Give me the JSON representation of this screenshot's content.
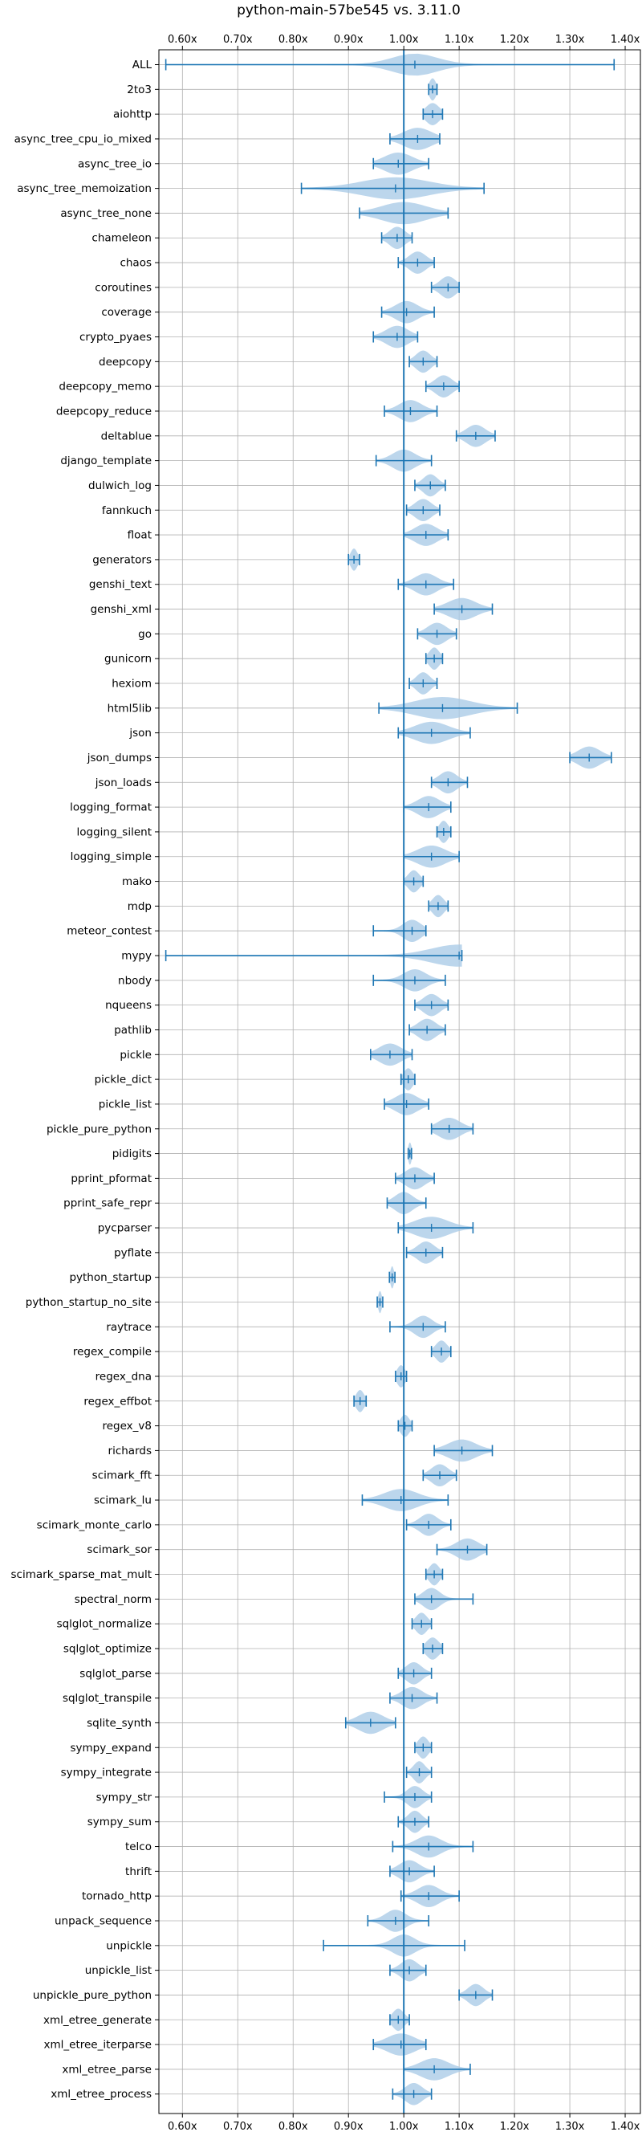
{
  "chart_data": {
    "type": "violin",
    "title": "python-main-57be545 vs. 3.11.0",
    "xlabel": "",
    "ylabel": "",
    "xlim": [
      0.5575,
      1.4275
    ],
    "xticks": [
      0.6,
      0.7,
      0.8,
      0.9,
      1.0,
      1.1,
      1.2,
      1.3,
      1.4
    ],
    "xtick_labels": [
      "0.60x",
      "0.70x",
      "0.80x",
      "0.90x",
      "1.00x",
      "1.10x",
      "1.20x",
      "1.30x",
      "1.40x"
    ],
    "tick_axes": [
      "top",
      "bottom"
    ],
    "reference_line": 1.0,
    "grid": true,
    "colors": {
      "violin": "#a6c8e6",
      "line": "#1f77b4",
      "grid": "#b0b0b0"
    },
    "benchmarks": [
      {
        "name": "ALL",
        "min": 0.57,
        "max": 1.38,
        "median": 1.02,
        "spread": 0.04
      },
      {
        "name": "2to3",
        "min": 1.045,
        "max": 1.06,
        "median": 1.052,
        "spread": 0.006
      },
      {
        "name": "aiohttp",
        "min": 1.035,
        "max": 1.07,
        "median": 1.052,
        "spread": 0.012
      },
      {
        "name": "async_tree_cpu_io_mixed",
        "min": 0.975,
        "max": 1.065,
        "median": 1.025,
        "spread": 0.025
      },
      {
        "name": "async_tree_io",
        "min": 0.945,
        "max": 1.045,
        "median": 0.99,
        "spread": 0.025
      },
      {
        "name": "async_tree_memoization",
        "min": 0.815,
        "max": 1.145,
        "median": 0.985,
        "spread": 0.06
      },
      {
        "name": "async_tree_none",
        "min": 0.92,
        "max": 1.08,
        "median": 1.0,
        "spread": 0.04
      },
      {
        "name": "chameleon",
        "min": 0.96,
        "max": 1.015,
        "median": 0.988,
        "spread": 0.014
      },
      {
        "name": "chaos",
        "min": 0.99,
        "max": 1.055,
        "median": 1.025,
        "spread": 0.015
      },
      {
        "name": "coroutines",
        "min": 1.05,
        "max": 1.1,
        "median": 1.08,
        "spread": 0.014
      },
      {
        "name": "coverage",
        "min": 0.96,
        "max": 1.055,
        "median": 1.005,
        "spread": 0.02
      },
      {
        "name": "crypto_pyaes",
        "min": 0.945,
        "max": 1.025,
        "median": 0.988,
        "spread": 0.02
      },
      {
        "name": "deepcopy",
        "min": 1.01,
        "max": 1.06,
        "median": 1.035,
        "spread": 0.013
      },
      {
        "name": "deepcopy_memo",
        "min": 1.04,
        "max": 1.1,
        "median": 1.072,
        "spread": 0.015
      },
      {
        "name": "deepcopy_reduce",
        "min": 0.965,
        "max": 1.06,
        "median": 1.012,
        "spread": 0.02
      },
      {
        "name": "deltablue",
        "min": 1.095,
        "max": 1.165,
        "median": 1.13,
        "spread": 0.017
      },
      {
        "name": "django_template",
        "min": 0.95,
        "max": 1.05,
        "median": 1.0,
        "spread": 0.02
      },
      {
        "name": "dulwich_log",
        "min": 1.02,
        "max": 1.075,
        "median": 1.048,
        "spread": 0.013
      },
      {
        "name": "fannkuch",
        "min": 1.005,
        "max": 1.065,
        "median": 1.035,
        "spread": 0.015
      },
      {
        "name": "float",
        "min": 1.0,
        "max": 1.08,
        "median": 1.04,
        "spread": 0.02
      },
      {
        "name": "generators",
        "min": 0.9,
        "max": 0.92,
        "median": 0.91,
        "spread": 0.006
      },
      {
        "name": "genshi_text",
        "min": 0.99,
        "max": 1.09,
        "median": 1.04,
        "spread": 0.02
      },
      {
        "name": "genshi_xml",
        "min": 1.055,
        "max": 1.16,
        "median": 1.105,
        "spread": 0.025
      },
      {
        "name": "go",
        "min": 1.025,
        "max": 1.095,
        "median": 1.06,
        "spread": 0.017
      },
      {
        "name": "gunicorn",
        "min": 1.04,
        "max": 1.07,
        "median": 1.055,
        "spread": 0.009
      },
      {
        "name": "hexiom",
        "min": 1.01,
        "max": 1.06,
        "median": 1.035,
        "spread": 0.012
      },
      {
        "name": "html5lib",
        "min": 0.955,
        "max": 1.205,
        "median": 1.07,
        "spread": 0.05
      },
      {
        "name": "json",
        "min": 0.99,
        "max": 1.12,
        "median": 1.05,
        "spread": 0.03
      },
      {
        "name": "json_dumps",
        "min": 1.3,
        "max": 1.375,
        "median": 1.335,
        "spread": 0.02
      },
      {
        "name": "json_loads",
        "min": 1.05,
        "max": 1.115,
        "median": 1.08,
        "spread": 0.016
      },
      {
        "name": "logging_format",
        "min": 1.0,
        "max": 1.085,
        "median": 1.045,
        "spread": 0.02
      },
      {
        "name": "logging_silent",
        "min": 1.06,
        "max": 1.085,
        "median": 1.072,
        "spread": 0.008
      },
      {
        "name": "logging_simple",
        "min": 1.0,
        "max": 1.1,
        "median": 1.05,
        "spread": 0.025
      },
      {
        "name": "mako",
        "min": 1.0,
        "max": 1.035,
        "median": 1.018,
        "spread": 0.01
      },
      {
        "name": "mdp",
        "min": 1.045,
        "max": 1.08,
        "median": 1.062,
        "spread": 0.01
      },
      {
        "name": "meteor_contest",
        "min": 0.945,
        "max": 1.04,
        "median": 1.015,
        "spread": 0.016
      },
      {
        "name": "mypy",
        "min": 0.57,
        "max": 1.105,
        "median": 1.1,
        "spread": 0.05
      },
      {
        "name": "nbody",
        "min": 0.945,
        "max": 1.075,
        "median": 1.02,
        "spread": 0.02
      },
      {
        "name": "nqueens",
        "min": 1.02,
        "max": 1.08,
        "median": 1.05,
        "spread": 0.015
      },
      {
        "name": "pathlib",
        "min": 1.01,
        "max": 1.075,
        "median": 1.042,
        "spread": 0.016
      },
      {
        "name": "pickle",
        "min": 0.94,
        "max": 1.015,
        "median": 0.975,
        "spread": 0.02
      },
      {
        "name": "pickle_dict",
        "min": 0.995,
        "max": 1.02,
        "median": 1.008,
        "spread": 0.008
      },
      {
        "name": "pickle_list",
        "min": 0.965,
        "max": 1.045,
        "median": 1.005,
        "spread": 0.02
      },
      {
        "name": "pickle_pure_python",
        "min": 1.05,
        "max": 1.125,
        "median": 1.082,
        "spread": 0.02
      },
      {
        "name": "pidigits",
        "min": 1.008,
        "max": 1.014,
        "median": 1.011,
        "spread": 0.003
      },
      {
        "name": "pprint_pformat",
        "min": 0.985,
        "max": 1.055,
        "median": 1.02,
        "spread": 0.017
      },
      {
        "name": "pprint_safe_repr",
        "min": 0.97,
        "max": 1.04,
        "median": 1.0,
        "spread": 0.016
      },
      {
        "name": "pycparser",
        "min": 0.99,
        "max": 1.125,
        "median": 1.05,
        "spread": 0.03
      },
      {
        "name": "pyflate",
        "min": 1.005,
        "max": 1.07,
        "median": 1.04,
        "spread": 0.015
      },
      {
        "name": "python_startup",
        "min": 0.974,
        "max": 0.984,
        "median": 0.979,
        "spread": 0.003
      },
      {
        "name": "python_startup_no_site",
        "min": 0.952,
        "max": 0.962,
        "median": 0.957,
        "spread": 0.003
      },
      {
        "name": "raytrace",
        "min": 0.975,
        "max": 1.075,
        "median": 1.035,
        "spread": 0.016
      },
      {
        "name": "regex_compile",
        "min": 1.05,
        "max": 1.085,
        "median": 1.068,
        "spread": 0.01
      },
      {
        "name": "regex_dna",
        "min": 0.985,
        "max": 1.005,
        "median": 0.995,
        "spread": 0.007
      },
      {
        "name": "regex_effbot",
        "min": 0.91,
        "max": 0.932,
        "median": 0.921,
        "spread": 0.007
      },
      {
        "name": "regex_v8",
        "min": 0.99,
        "max": 1.015,
        "median": 1.002,
        "spread": 0.008
      },
      {
        "name": "richards",
        "min": 1.055,
        "max": 1.16,
        "median": 1.105,
        "spread": 0.025
      },
      {
        "name": "scimark_fft",
        "min": 1.035,
        "max": 1.095,
        "median": 1.065,
        "spread": 0.015
      },
      {
        "name": "scimark_lu",
        "min": 0.925,
        "max": 1.08,
        "median": 0.995,
        "spread": 0.03
      },
      {
        "name": "scimark_monte_carlo",
        "min": 1.005,
        "max": 1.085,
        "median": 1.045,
        "spread": 0.016
      },
      {
        "name": "scimark_sor",
        "min": 1.06,
        "max": 1.15,
        "median": 1.115,
        "spread": 0.02
      },
      {
        "name": "scimark_sparse_mat_mult",
        "min": 1.04,
        "max": 1.07,
        "median": 1.055,
        "spread": 0.009
      },
      {
        "name": "spectral_norm",
        "min": 1.02,
        "max": 1.125,
        "median": 1.05,
        "spread": 0.015
      },
      {
        "name": "sqlglot_normalize",
        "min": 1.015,
        "max": 1.05,
        "median": 1.032,
        "spread": 0.01
      },
      {
        "name": "sqlglot_optimize",
        "min": 1.035,
        "max": 1.07,
        "median": 1.052,
        "spread": 0.011
      },
      {
        "name": "sqlglot_parse",
        "min": 0.99,
        "max": 1.05,
        "median": 1.018,
        "spread": 0.014
      },
      {
        "name": "sqlglot_transpile",
        "min": 0.975,
        "max": 1.06,
        "median": 1.015,
        "spread": 0.018
      },
      {
        "name": "sqlite_synth",
        "min": 0.895,
        "max": 0.985,
        "median": 0.94,
        "spread": 0.022
      },
      {
        "name": "sympy_expand",
        "min": 1.02,
        "max": 1.05,
        "median": 1.035,
        "spread": 0.009
      },
      {
        "name": "sympy_integrate",
        "min": 1.005,
        "max": 1.05,
        "median": 1.028,
        "spread": 0.01
      },
      {
        "name": "sympy_str",
        "min": 0.965,
        "max": 1.05,
        "median": 1.02,
        "spread": 0.014
      },
      {
        "name": "sympy_sum",
        "min": 0.99,
        "max": 1.045,
        "median": 1.02,
        "spread": 0.012
      },
      {
        "name": "telco",
        "min": 0.98,
        "max": 1.125,
        "median": 1.045,
        "spread": 0.022
      },
      {
        "name": "thrift",
        "min": 0.975,
        "max": 1.055,
        "median": 1.01,
        "spread": 0.018
      },
      {
        "name": "tornado_http",
        "min": 0.995,
        "max": 1.1,
        "median": 1.045,
        "spread": 0.02
      },
      {
        "name": "unpack_sequence",
        "min": 0.935,
        "max": 1.045,
        "median": 0.985,
        "spread": 0.018
      },
      {
        "name": "unpickle",
        "min": 0.855,
        "max": 1.11,
        "median": 1.0,
        "spread": 0.02
      },
      {
        "name": "unpickle_list",
        "min": 0.975,
        "max": 1.04,
        "median": 1.01,
        "spread": 0.015
      },
      {
        "name": "unpickle_pure_python",
        "min": 1.1,
        "max": 1.16,
        "median": 1.13,
        "spread": 0.014
      },
      {
        "name": "xml_etree_generate",
        "min": 0.975,
        "max": 1.01,
        "median": 0.99,
        "spread": 0.01
      },
      {
        "name": "xml_etree_iterparse",
        "min": 0.945,
        "max": 1.04,
        "median": 0.995,
        "spread": 0.025
      },
      {
        "name": "xml_etree_parse",
        "min": 1.0,
        "max": 1.12,
        "median": 1.055,
        "spread": 0.025
      },
      {
        "name": "xml_etree_process",
        "min": 0.98,
        "max": 1.05,
        "median": 1.018,
        "spread": 0.015
      }
    ]
  }
}
